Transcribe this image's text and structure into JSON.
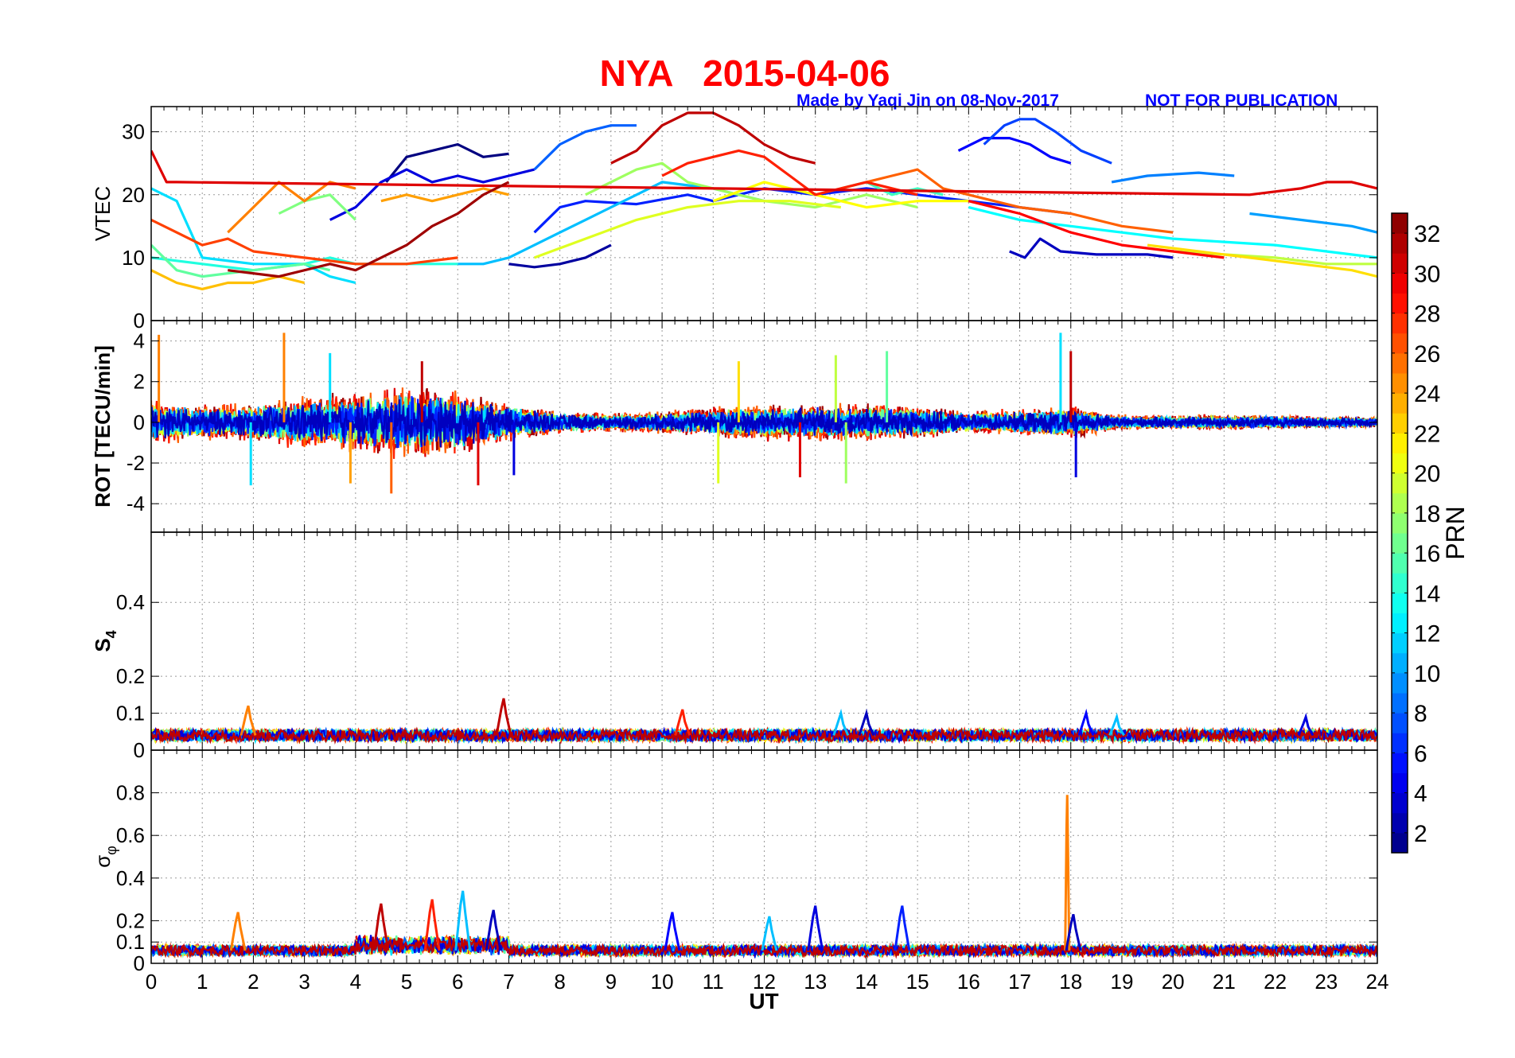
{
  "figure": {
    "title": "NYA   2015-04-06",
    "credit": "Made by Yaqi Jin on 08-Nov-2017",
    "notice": "NOT FOR PUBLICATION"
  },
  "colors": {
    "title": "#ff0000",
    "subtitle": "#0000ff",
    "colormap": "jet"
  },
  "chart_data": [
    {
      "type": "line",
      "panel": "vtec",
      "ylabel": "VTEC",
      "xlim": [
        0,
        24
      ],
      "ylim": [
        0,
        34
      ],
      "yticks": [
        "0",
        "10",
        "20",
        "30"
      ],
      "series": [
        {
          "prn": 1,
          "x": [
            4.6,
            5.0,
            5.5,
            6.0,
            6.5,
            7.0
          ],
          "y": [
            22,
            26,
            27,
            28,
            26,
            26.5
          ]
        },
        {
          "prn": 2,
          "x": [
            7.0,
            7.5,
            8.0,
            8.5,
            9.0
          ],
          "y": [
            9,
            8.5,
            9,
            10,
            12
          ]
        },
        {
          "prn": 3,
          "x": [
            16.8,
            17.1,
            17.4,
            17.8,
            18.5,
            19.5,
            20.0
          ],
          "y": [
            11,
            10,
            13,
            11,
            10.5,
            10.5,
            10
          ]
        },
        {
          "prn": 4,
          "x": [
            3.5,
            4.0,
            4.5,
            5.0,
            5.5,
            6.0,
            6.5,
            7.0,
            7.5
          ],
          "y": [
            16,
            18,
            22,
            24,
            22,
            23,
            22,
            23,
            24
          ]
        },
        {
          "prn": 5,
          "x": [
            15.8,
            16.3,
            16.8,
            17.2,
            17.6,
            18.0
          ],
          "y": [
            27,
            29,
            29,
            28,
            26,
            25
          ]
        },
        {
          "prn": 6,
          "x": [
            7.5,
            8.0,
            8.5,
            9.5,
            10.5,
            11.0,
            12.0,
            13.0,
            14.0,
            15.0,
            16.0,
            17.0,
            18.0
          ],
          "y": [
            14,
            18,
            19,
            18.5,
            20,
            19,
            21,
            20,
            21,
            20,
            19,
            18,
            17
          ]
        },
        {
          "prn": 7,
          "x": [
            16.3,
            16.7,
            17.0,
            17.3,
            17.7,
            18.2,
            18.8
          ],
          "y": [
            28,
            31,
            32,
            32,
            30,
            27,
            25
          ]
        },
        {
          "prn": 8,
          "x": [
            7.5,
            8.0,
            8.5,
            9.0,
            9.5
          ],
          "y": [
            24,
            28,
            30,
            31,
            31
          ]
        },
        {
          "prn": 9,
          "x": [
            18.8,
            19.5,
            20.5,
            21.2
          ],
          "y": [
            22,
            23,
            23.5,
            23
          ]
        },
        {
          "prn": 10,
          "x": [
            21.5,
            22.5,
            23.5,
            24.0
          ],
          "y": [
            17,
            16,
            15,
            14
          ]
        },
        {
          "prn": 11,
          "x": [
            6.0,
            6.5,
            7.0,
            7.5,
            8.0,
            8.5,
            9.0,
            9.5,
            10.0,
            11.0,
            12.0
          ],
          "y": [
            9,
            9,
            10,
            12,
            14,
            16,
            18,
            20,
            22,
            21,
            19
          ]
        },
        {
          "prn": 12,
          "x": [
            0.0,
            0.5,
            1.0,
            2.0,
            3.0,
            3.5,
            4.0
          ],
          "y": [
            21,
            19,
            10,
            9,
            9,
            7,
            6
          ]
        },
        {
          "prn": 13,
          "x": [
            16.0,
            17.0,
            18.0,
            19.0,
            20.0,
            21.0,
            22.0,
            23.0,
            24.0
          ],
          "y": [
            18,
            16,
            15,
            14,
            13,
            12.5,
            12,
            11,
            10
          ]
        },
        {
          "prn": 14,
          "x": [
            0.0,
            1.0,
            2.0,
            3.0,
            3.5,
            4.0,
            5.0,
            6.0
          ],
          "y": [
            10,
            9,
            8,
            9,
            10,
            9,
            9,
            9
          ]
        },
        {
          "prn": 15,
          "x": [
            13.5,
            14.0,
            14.5,
            15.0,
            15.5
          ],
          "y": [
            21,
            22,
            20,
            21,
            20
          ]
        },
        {
          "prn": 16,
          "x": [
            0.0,
            0.5,
            1.0,
            2.0,
            3.0,
            3.5
          ],
          "y": [
            12,
            8,
            7,
            8,
            9,
            8
          ]
        },
        {
          "prn": 17,
          "x": [
            2.5,
            3.0,
            3.5,
            4.0
          ],
          "y": [
            17,
            19,
            20,
            16
          ]
        },
        {
          "prn": 18,
          "x": [
            8.5,
            9.0,
            9.5,
            10.0,
            10.5,
            11.0,
            12.0,
            13.0,
            14.0,
            15.0
          ],
          "y": [
            20,
            22,
            24,
            25,
            22,
            21,
            19,
            18,
            20,
            18
          ]
        },
        {
          "prn": 19,
          "x": [
            20.0,
            21.0,
            22.0,
            23.0,
            24.0
          ],
          "y": [
            11,
            10.5,
            10,
            9,
            9
          ]
        },
        {
          "prn": 20,
          "x": [
            7.5,
            8.5,
            9.5,
            10.5,
            11.5,
            12.5,
            13.5
          ],
          "y": [
            10,
            13,
            16,
            18,
            19,
            19,
            18
          ]
        },
        {
          "prn": 21,
          "x": [
            11.0,
            12.0,
            13.0,
            14.0,
            15.0,
            16.0
          ],
          "y": [
            19,
            22,
            20,
            18,
            19,
            19
          ]
        },
        {
          "prn": 22,
          "x": [
            19.5,
            20.5,
            21.5,
            22.5,
            23.5,
            24.0
          ],
          "y": [
            12,
            11,
            10,
            9,
            8,
            7
          ]
        },
        {
          "prn": 23,
          "x": [
            0.0,
            0.5,
            1.0,
            1.5,
            2.0,
            2.5,
            3.0
          ],
          "y": [
            8,
            6,
            5,
            6,
            6,
            7,
            6
          ]
        },
        {
          "prn": 24,
          "x": [
            4.5,
            5.0,
            5.5,
            6.0,
            6.5,
            7.0
          ],
          "y": [
            19,
            20,
            19,
            20,
            21,
            20
          ]
        },
        {
          "prn": 25,
          "x": [
            1.5,
            2.0,
            2.5,
            3.0,
            3.5,
            4.0
          ],
          "y": [
            14,
            18,
            22,
            19,
            22,
            21
          ]
        },
        {
          "prn": 26,
          "x": [
            14.0,
            14.5,
            15.0,
            15.5,
            16.0,
            17.0,
            18.0,
            19.0,
            20.0
          ],
          "y": [
            22,
            23,
            24,
            21,
            20,
            18,
            17,
            15,
            14
          ]
        },
        {
          "prn": 27,
          "x": [
            0.0,
            0.5,
            1.0,
            1.5,
            2.0,
            3.0,
            4.0,
            5.0,
            6.0
          ],
          "y": [
            16,
            14,
            12,
            13,
            11,
            10,
            9,
            9,
            10
          ]
        },
        {
          "prn": 28,
          "x": [
            10.0,
            10.5,
            11.0,
            11.5,
            12.0,
            12.5,
            13.0,
            14.0,
            15.0
          ],
          "y": [
            23,
            25,
            26,
            27,
            26,
            23,
            20,
            22,
            20
          ]
        },
        {
          "prn": 29,
          "x": [
            16.0,
            17.0,
            18.0,
            19.0,
            20.0,
            21.0
          ],
          "y": [
            19,
            17,
            14,
            12,
            11,
            10
          ]
        },
        {
          "prn": 30,
          "x": [
            0.0,
            0.3,
            0.5,
            21.5,
            22.5,
            23.0,
            23.5,
            24.0
          ],
          "y": [
            27,
            22,
            22,
            20,
            21,
            22,
            22,
            21
          ]
        },
        {
          "prn": 31,
          "x": [
            9.0,
            9.5,
            10.0,
            10.5,
            11.0,
            11.5,
            12.0,
            12.5,
            13.0
          ],
          "y": [
            25,
            27,
            31,
            33,
            33,
            31,
            28,
            26,
            25
          ]
        },
        {
          "prn": 32,
          "x": [
            1.5,
            2.5,
            3.5,
            4.0,
            4.5,
            5.0,
            5.5,
            6.0,
            6.5,
            7.0
          ],
          "y": [
            8,
            7,
            9,
            8,
            10,
            12,
            15,
            17,
            20,
            22
          ]
        }
      ]
    },
    {
      "type": "line",
      "panel": "rot",
      "ylabel": "ROT [TECU/min]",
      "xlim": [
        0,
        24
      ],
      "ylim": [
        -5.4,
        5.0
      ],
      "yticks": [
        "-4",
        "-2",
        "0",
        "2",
        "4"
      ],
      "noise_envelope": {
        "x": [
          0,
          1,
          2,
          3,
          4,
          5,
          6,
          7,
          8,
          9,
          10,
          11,
          12,
          13,
          14,
          15,
          16,
          17,
          18,
          19,
          20,
          21,
          22,
          23,
          24
        ],
        "amplitude": [
          1.2,
          0.9,
          1.0,
          1.4,
          1.6,
          1.9,
          1.7,
          1.0,
          0.6,
          0.5,
          0.6,
          0.8,
          1.0,
          1.0,
          1.0,
          0.9,
          0.6,
          0.7,
          0.9,
          0.4,
          0.4,
          0.4,
          0.4,
          0.3,
          0.3
        ]
      },
      "spikes": [
        {
          "x": 0.15,
          "y": 4.3
        },
        {
          "x": 2.6,
          "y": 4.4
        },
        {
          "x": 1.95,
          "y": -3.1
        },
        {
          "x": 3.5,
          "y": 3.4
        },
        {
          "x": 3.9,
          "y": -3.0
        },
        {
          "x": 4.7,
          "y": -3.5
        },
        {
          "x": 5.3,
          "y": 3.0
        },
        {
          "x": 6.4,
          "y": -3.1
        },
        {
          "x": 7.1,
          "y": -2.6
        },
        {
          "x": 11.5,
          "y": 3.0
        },
        {
          "x": 11.1,
          "y": -3.0
        },
        {
          "x": 12.7,
          "y": -2.7
        },
        {
          "x": 13.4,
          "y": 3.3
        },
        {
          "x": 13.6,
          "y": -3.0
        },
        {
          "x": 14.4,
          "y": 3.5
        },
        {
          "x": 17.8,
          "y": 4.4
        },
        {
          "x": 18.1,
          "y": -2.7
        },
        {
          "x": 18.0,
          "y": 3.5
        }
      ]
    },
    {
      "type": "line",
      "panel": "s4",
      "ylabel": "S",
      "ylabel_sub": "4",
      "xlim": [
        0,
        24
      ],
      "ylim": [
        0,
        0.59
      ],
      "yticks": [
        "0",
        "0.1",
        "0.2",
        "0.4"
      ],
      "baseline": 0.04,
      "peaks": [
        {
          "x": 1.9,
          "y": 0.12
        },
        {
          "x": 6.9,
          "y": 0.14
        },
        {
          "x": 10.4,
          "y": 0.11
        },
        {
          "x": 13.5,
          "y": 0.1
        },
        {
          "x": 14.0,
          "y": 0.1
        },
        {
          "x": 18.3,
          "y": 0.1
        },
        {
          "x": 18.9,
          "y": 0.09
        },
        {
          "x": 22.6,
          "y": 0.09
        }
      ]
    },
    {
      "type": "line",
      "panel": "sigma_phi",
      "ylabel": "σ",
      "ylabel_sub": "φ",
      "xlabel": "UT",
      "xlim": [
        0,
        24
      ],
      "ylim": [
        0,
        1.0
      ],
      "yticks": [
        "0",
        "0.1",
        "0.2",
        "0.4",
        "0.6",
        "0.8"
      ],
      "xticks": [
        "0",
        "1",
        "2",
        "3",
        "4",
        "5",
        "6",
        "7",
        "8",
        "9",
        "10",
        "11",
        "12",
        "13",
        "14",
        "15",
        "16",
        "17",
        "18",
        "19",
        "20",
        "21",
        "22",
        "23",
        "24"
      ],
      "baseline": 0.06,
      "bumps": [
        {
          "x": 1.7,
          "y": 0.24
        },
        {
          "x": 4.5,
          "y": 0.28
        },
        {
          "x": 5.5,
          "y": 0.3
        },
        {
          "x": 6.1,
          "y": 0.34
        },
        {
          "x": 6.7,
          "y": 0.25
        },
        {
          "x": 10.2,
          "y": 0.24
        },
        {
          "x": 12.1,
          "y": 0.22
        },
        {
          "x": 13.0,
          "y": 0.27
        },
        {
          "x": 14.7,
          "y": 0.27
        },
        {
          "x": 17.93,
          "y": 0.79
        },
        {
          "x": 18.05,
          "y": 0.23
        }
      ]
    }
  ],
  "colorbar": {
    "label": "PRN",
    "min": 1,
    "max": 33,
    "ticks": [
      "2",
      "4",
      "6",
      "8",
      "10",
      "12",
      "14",
      "16",
      "18",
      "20",
      "22",
      "24",
      "26",
      "28",
      "30",
      "32"
    ]
  }
}
